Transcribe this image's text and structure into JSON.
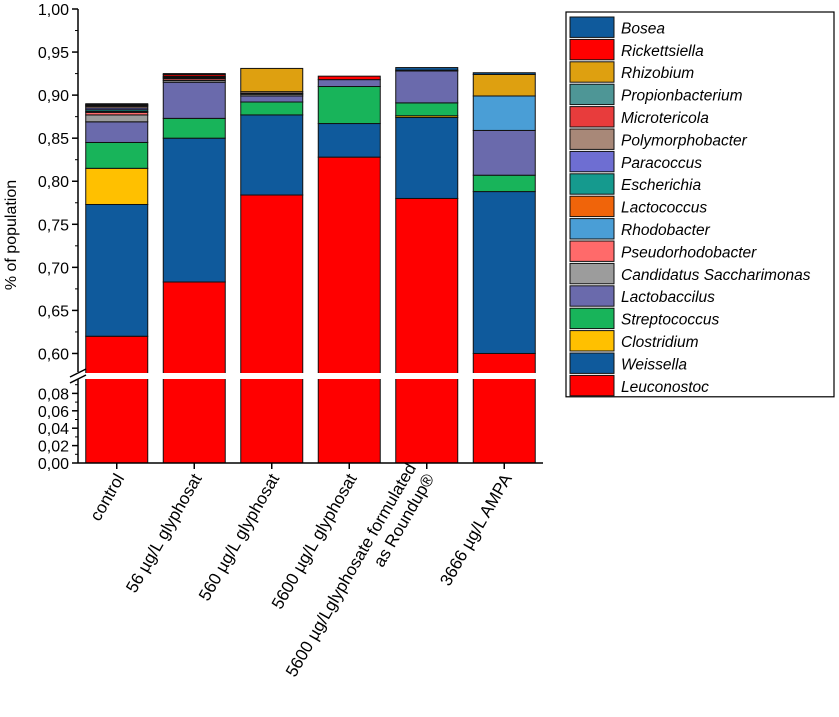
{
  "chart_data": {
    "type": "bar",
    "stacked": true,
    "ylabel": "% of population",
    "y_axis_break": {
      "lower_range": [
        0.0,
        0.1
      ],
      "upper_range": [
        0.575,
        1.0
      ]
    },
    "upper_ticks": [
      "0,60",
      "0,65",
      "0,70",
      "0,75",
      "0,80",
      "0,85",
      "0,90",
      "0,95",
      "1,00"
    ],
    "upper_tick_values": [
      0.6,
      0.65,
      0.7,
      0.75,
      0.8,
      0.85,
      0.9,
      0.95,
      1.0
    ],
    "lower_ticks": [
      "0,00",
      "0,02",
      "0,04",
      "0,06",
      "0,08"
    ],
    "lower_tick_values": [
      0.0,
      0.02,
      0.04,
      0.06,
      0.08
    ],
    "categories": [
      [
        "control"
      ],
      [
        "56 µg/L glyphosat"
      ],
      [
        "560 µg/L glyphosat"
      ],
      [
        "5600 µg/L glyphosat"
      ],
      [
        "5600 µg/Lglyphosate formulated",
        "as Roundup®"
      ],
      [
        "3666 µg/L AMPA"
      ]
    ],
    "legend_position": "right",
    "series": [
      {
        "name": "Leuconostoc",
        "color": "#ff0000",
        "values": [
          0.62,
          0.683,
          0.784,
          0.828,
          0.78,
          0.6
        ]
      },
      {
        "name": "Weissella",
        "color": "#0f5a9c",
        "values": [
          0.153,
          0.167,
          0.093,
          0.039,
          0.094,
          0.188
        ]
      },
      {
        "name": "Clostridium",
        "color": "#ffc000",
        "values": [
          0.042,
          0.0,
          0.0,
          0.0,
          0.002,
          0.0
        ]
      },
      {
        "name": "Streptococcus",
        "color": "#18b45a",
        "values": [
          0.03,
          0.023,
          0.015,
          0.043,
          0.015,
          0.019
        ]
      },
      {
        "name": "Lactobaccilus",
        "color": "#6a6aac",
        "values": [
          0.024,
          0.042,
          0.007,
          0.008,
          0.037,
          0.052
        ]
      },
      {
        "name": "Candidatus Saccharimonas",
        "color": "#9c9c9c",
        "values": [
          0.008,
          0.002,
          0.002,
          0.0,
          0.001,
          0.0
        ]
      },
      {
        "name": "Pseudorhodobacter",
        "color": "#ff6a6a",
        "values": [
          0.003,
          0.002,
          0.0,
          0.0,
          0.0,
          0.0
        ]
      },
      {
        "name": "Rhodobacter",
        "color": "#4a9ed6",
        "values": [
          0.0,
          0.0,
          0.0,
          0.0,
          0.0,
          0.04
        ]
      },
      {
        "name": "Lactococcus",
        "color": "#f0640a",
        "values": [
          0.001,
          0.001,
          0.0,
          0.0,
          0.0,
          0.0
        ]
      },
      {
        "name": "Escherichia",
        "color": "#159a8e",
        "values": [
          0.002,
          0.001,
          0.001,
          0.0,
          0.0,
          0.0
        ]
      },
      {
        "name": "Paracoccus",
        "color": "#6e6ed2",
        "values": [
          0.002,
          0.001,
          0.0,
          0.0,
          0.0,
          0.0
        ]
      },
      {
        "name": "Polymorphobacter",
        "color": "#a88878",
        "values": [
          0.002,
          0.0,
          0.002,
          0.0,
          0.0,
          0.0
        ]
      },
      {
        "name": "Microtericola",
        "color": "#e83c3c",
        "values": [
          0.0,
          0.0,
          0.0,
          0.0,
          0.0,
          0.0
        ]
      },
      {
        "name": "Propionbacterium",
        "color": "#4e9696",
        "values": [
          0.0,
          0.0,
          0.0,
          0.0,
          0.0,
          0.0
        ]
      },
      {
        "name": "Rhizobium",
        "color": "#dea010",
        "values": [
          0.001,
          0.0,
          0.027,
          0.0,
          0.0,
          0.025
        ]
      },
      {
        "name": "Rickettsiella",
        "color": "#ff0000",
        "values": [
          0.001,
          0.002,
          0.0,
          0.004,
          0.0,
          0.0
        ]
      },
      {
        "name": "Bosea",
        "color": "#0f5a9c",
        "values": [
          0.001,
          0.001,
          0.0,
          0.0,
          0.003,
          0.002
        ]
      }
    ],
    "legend_order": [
      "Bosea",
      "Rickettsiella",
      "Rhizobium",
      "Propionbacterium",
      "Microtericola",
      "Polymorphobacter",
      "Paracoccus",
      "Escherichia",
      "Lactococcus",
      "Rhodobacter",
      "Pseudorhodobacter",
      "Candidatus Saccharimonas",
      "Lactobaccilus",
      "Streptococcus",
      "Clostridium",
      "Weissella",
      "Leuconostoc"
    ]
  }
}
